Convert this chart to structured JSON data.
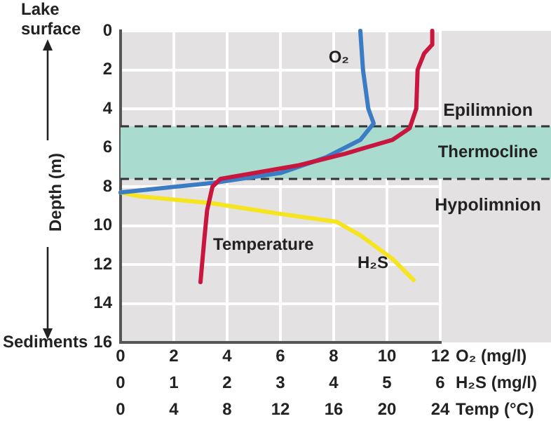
{
  "chart_data": [
    {
      "type": "line",
      "ylabel": "Depth (m)",
      "xlabel": "O₂ (mg/l)",
      "x2label": "H₂S (mg/l)",
      "ylim": [
        16,
        0
      ],
      "yticks": [
        0,
        2,
        4,
        6,
        8,
        10,
        12,
        14,
        16
      ],
      "xlim": [
        0,
        12
      ],
      "xticks": [
        0,
        2,
        4,
        6,
        8,
        10,
        12
      ],
      "x2lim": [
        0,
        6
      ],
      "x2ticks": [
        0,
        1,
        2,
        3,
        4,
        5,
        6
      ],
      "grid": true,
      "legend": false,
      "marker": "none",
      "line_style": "solid",
      "series": [
        {
          "name": "O₂",
          "color": "#3b7cc4",
          "x": [
            9.0,
            9.1,
            9.3,
            9.5,
            9.0,
            7.7,
            6.0,
            3.5,
            0
          ],
          "values": [
            0,
            2,
            4,
            4.75,
            5.6,
            6.5,
            7.3,
            7.8,
            8.3
          ]
        },
        {
          "name": "H₂S",
          "color": "#f5e41e",
          "axis": "x2",
          "x": [
            0,
            0.37,
            1.7,
            3.0,
            4.05,
            4.5,
            5.1,
            5.5
          ],
          "values": [
            8.3,
            8.5,
            8.85,
            9.4,
            9.8,
            10.5,
            11.7,
            12.8
          ]
        }
      ],
      "bands": [
        {
          "axis": "y",
          "from": 4.9,
          "to": 7.6,
          "label": "Thermocline",
          "color": "#a9dccf"
        }
      ],
      "ref_lines": [
        {
          "axis": "y",
          "value": 4.9,
          "color": "#333333",
          "line_style": "dashed"
        },
        {
          "axis": "y",
          "value": 7.6,
          "color": "#333333",
          "line_style": "dashed"
        }
      ],
      "annotations": [
        "Lake surface",
        "Sediments",
        "Epilimnion",
        "Hypolimnion"
      ]
    },
    {
      "type": "line",
      "xlabel": "Temp (°C)",
      "xlim": [
        0,
        24
      ],
      "xticks": [
        0,
        4,
        8,
        12,
        16,
        20,
        24
      ],
      "ylim": [
        16,
        0
      ],
      "yticks": [
        0,
        2,
        4,
        6,
        8,
        10,
        12,
        14,
        16
      ],
      "tick_labels": "x",
      "legend": false,
      "marker": "none",
      "line_style": "solid",
      "series": [
        {
          "name": "Temperature",
          "color": "#c8163e",
          "x": [
            23.4,
            23.4,
            22.8,
            22.3,
            22.2,
            21.7,
            20.4,
            16.9,
            13.4,
            7.5,
            6.9,
            6.5,
            6.3,
            6.0
          ],
          "values": [
            0,
            0.7,
            1.15,
            2,
            4,
            5,
            5.6,
            6.3,
            6.9,
            7.6,
            8.0,
            9.2,
            10.6,
            12.9
          ]
        }
      ]
    }
  ]
}
